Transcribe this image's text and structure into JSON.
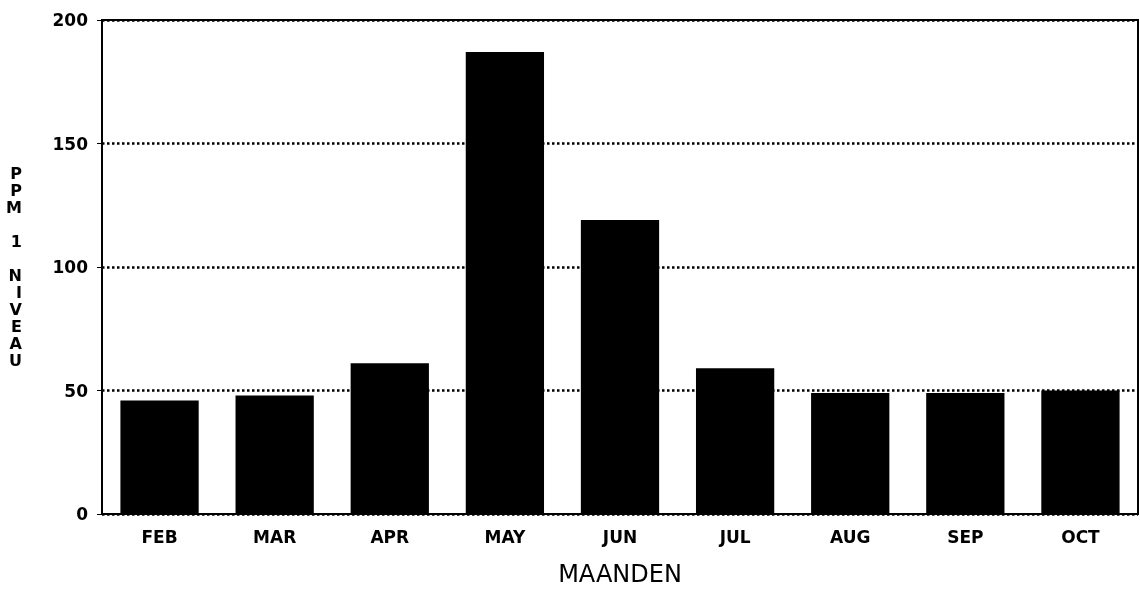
{
  "chart_data": {
    "type": "bar",
    "xlabel": "MAANDEN",
    "ylabel": "PPM 1 NIVEAU",
    "categories": [
      "FEB",
      "MAR",
      "APR",
      "MAY",
      "JUN",
      "JUL",
      "AUG",
      "SEP",
      "OCT"
    ],
    "values": [
      46,
      48,
      61,
      187,
      119,
      59,
      49,
      49,
      50
    ],
    "color": "#000000",
    "ylim": [
      0,
      200
    ],
    "yticks": [
      0,
      50,
      100,
      150,
      200
    ],
    "grid": "y"
  }
}
